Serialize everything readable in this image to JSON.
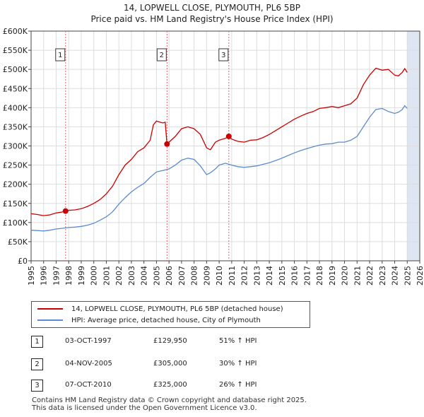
{
  "title_line1": "14, LOPWELL CLOSE, PLYMOUTH, PL6 5BP",
  "title_line2": "Price paid vs. HM Land Registry's House Price Index (HPI)",
  "colors": {
    "property": "#cc0000",
    "hpi": "#5b8bd0",
    "shade": "#dde6f2",
    "grid": "#dddddd",
    "marker_line": "#e06666"
  },
  "legend": {
    "property_label": "14, LOPWELL CLOSE, PLYMOUTH, PL6 5BP (detached house)",
    "hpi_label": "HPI: Average price, detached house, City of Plymouth"
  },
  "transactions": [
    {
      "num": "1",
      "date": "03-OCT-1997",
      "price": "£129,950",
      "hpi_change": "51% ↑ HPI"
    },
    {
      "num": "2",
      "date": "04-NOV-2005",
      "price": "£305,000",
      "hpi_change": "30% ↑ HPI"
    },
    {
      "num": "3",
      "date": "07-OCT-2010",
      "price": "£325,000",
      "hpi_change": "26% ↑ HPI"
    }
  ],
  "footer_line1": "Contains HM Land Registry data © Crown copyright and database right 2025.",
  "footer_line2": "This data is licensed under the Open Government Licence v3.0.",
  "chart_data": {
    "type": "line",
    "title": "14, LOPWELL CLOSE, PLYMOUTH, PL6 5BP",
    "subtitle": "Price paid vs. HM Land Registry's House Price Index (HPI)",
    "xlabel": "",
    "ylabel": "",
    "xlim": [
      1995,
      2026
    ],
    "ylim": [
      0,
      600000
    ],
    "grid": true,
    "x_ticks": [
      "1995",
      "1996",
      "1997",
      "1998",
      "1999",
      "2000",
      "2001",
      "2002",
      "2003",
      "2004",
      "2005",
      "2006",
      "2007",
      "2008",
      "2009",
      "2010",
      "2011",
      "2012",
      "2013",
      "2014",
      "2015",
      "2016",
      "2017",
      "2018",
      "2019",
      "2020",
      "2021",
      "2022",
      "2023",
      "2024",
      "2025",
      "2026"
    ],
    "y_ticks": [
      {
        "value": 0,
        "label": "£0"
      },
      {
        "value": 50000,
        "label": "£50K"
      },
      {
        "value": 100000,
        "label": "£100K"
      },
      {
        "value": 150000,
        "label": "£150K"
      },
      {
        "value": 200000,
        "label": "£200K"
      },
      {
        "value": 250000,
        "label": "£250K"
      },
      {
        "value": 300000,
        "label": "£300K"
      },
      {
        "value": 350000,
        "label": "£350K"
      },
      {
        "value": 400000,
        "label": "£400K"
      },
      {
        "value": 450000,
        "label": "£450K"
      },
      {
        "value": 500000,
        "label": "£500K"
      },
      {
        "value": 550000,
        "label": "£550K"
      },
      {
        "value": 600000,
        "label": "£600K"
      }
    ],
    "shaded_region": {
      "from": 2025.0,
      "to": 2026.0
    },
    "series": [
      {
        "name": "14, LOPWELL CLOSE, PLYMOUTH, PL6 5BP (detached house)",
        "x": [
          1995.0,
          1995.5,
          1996.0,
          1996.5,
          1997.0,
          1997.4,
          1997.75,
          1998.0,
          1998.5,
          1999.0,
          1999.5,
          2000.0,
          2000.5,
          2001.0,
          2001.5,
          2002.0,
          2002.5,
          2003.0,
          2003.5,
          2004.0,
          2004.5,
          2004.75,
          2005.0,
          2005.5,
          2005.7,
          2005.84,
          2006.0,
          2006.5,
          2007.0,
          2007.5,
          2008.0,
          2008.5,
          2009.0,
          2009.3,
          2009.7,
          2010.0,
          2010.5,
          2010.77,
          2011.0,
          2011.5,
          2012.0,
          2012.5,
          2013.0,
          2013.5,
          2014.0,
          2014.5,
          2015.0,
          2015.5,
          2016.0,
          2016.5,
          2017.0,
          2017.5,
          2018.0,
          2018.5,
          2019.0,
          2019.5,
          2020.0,
          2020.5,
          2021.0,
          2021.5,
          2022.0,
          2022.5,
          2023.0,
          2023.5,
          2024.0,
          2024.3,
          2024.6,
          2024.8,
          2025.0
        ],
        "values": [
          123000,
          121000,
          118000,
          120000,
          125000,
          127000,
          129950,
          132000,
          133000,
          136000,
          142000,
          150000,
          160000,
          175000,
          195000,
          225000,
          250000,
          265000,
          285000,
          295000,
          315000,
          355000,
          365000,
          360000,
          362000,
          305000,
          310000,
          325000,
          345000,
          350000,
          345000,
          330000,
          295000,
          290000,
          310000,
          315000,
          320000,
          325000,
          318000,
          312000,
          310000,
          315000,
          316000,
          322000,
          330000,
          340000,
          350000,
          360000,
          370000,
          378000,
          385000,
          390000,
          398000,
          400000,
          403000,
          400000,
          405000,
          410000,
          425000,
          460000,
          485000,
          503000,
          498000,
          500000,
          485000,
          483000,
          492000,
          502000,
          492000
        ]
      },
      {
        "name": "HPI: Average price, detached house, City of Plymouth",
        "x": [
          1995.0,
          1995.5,
          1996.0,
          1996.5,
          1997.0,
          1997.5,
          1998.0,
          1998.5,
          1999.0,
          1999.5,
          2000.0,
          2000.5,
          2001.0,
          2001.5,
          2002.0,
          2002.5,
          2003.0,
          2003.5,
          2004.0,
          2004.5,
          2005.0,
          2005.5,
          2006.0,
          2006.5,
          2007.0,
          2007.5,
          2008.0,
          2008.5,
          2009.0,
          2009.3,
          2009.7,
          2010.0,
          2010.5,
          2011.0,
          2011.5,
          2012.0,
          2012.5,
          2013.0,
          2013.5,
          2014.0,
          2014.5,
          2015.0,
          2015.5,
          2016.0,
          2016.5,
          2017.0,
          2017.5,
          2018.0,
          2018.5,
          2019.0,
          2019.5,
          2020.0,
          2020.5,
          2021.0,
          2021.5,
          2022.0,
          2022.5,
          2023.0,
          2023.5,
          2024.0,
          2024.3,
          2024.6,
          2024.8,
          2025.0
        ],
        "values": [
          80000,
          79000,
          78000,
          80000,
          83000,
          85000,
          87000,
          88000,
          90000,
          93000,
          98000,
          106000,
          115000,
          128000,
          148000,
          165000,
          180000,
          192000,
          202000,
          218000,
          232000,
          236000,
          240000,
          250000,
          263000,
          268000,
          265000,
          248000,
          225000,
          230000,
          240000,
          250000,
          255000,
          250000,
          246000,
          244000,
          246000,
          248000,
          252000,
          256000,
          262000,
          268000,
          275000,
          282000,
          288000,
          293000,
          298000,
          302000,
          305000,
          306000,
          310000,
          310000,
          315000,
          325000,
          350000,
          375000,
          395000,
          398000,
          390000,
          385000,
          388000,
          395000,
          405000,
          398000
        ]
      }
    ],
    "markers": [
      {
        "label": "1",
        "x": 1997.75,
        "y": 129950
      },
      {
        "label": "2",
        "x": 2005.84,
        "y": 305000
      },
      {
        "label": "3",
        "x": 2010.77,
        "y": 325000
      }
    ]
  }
}
